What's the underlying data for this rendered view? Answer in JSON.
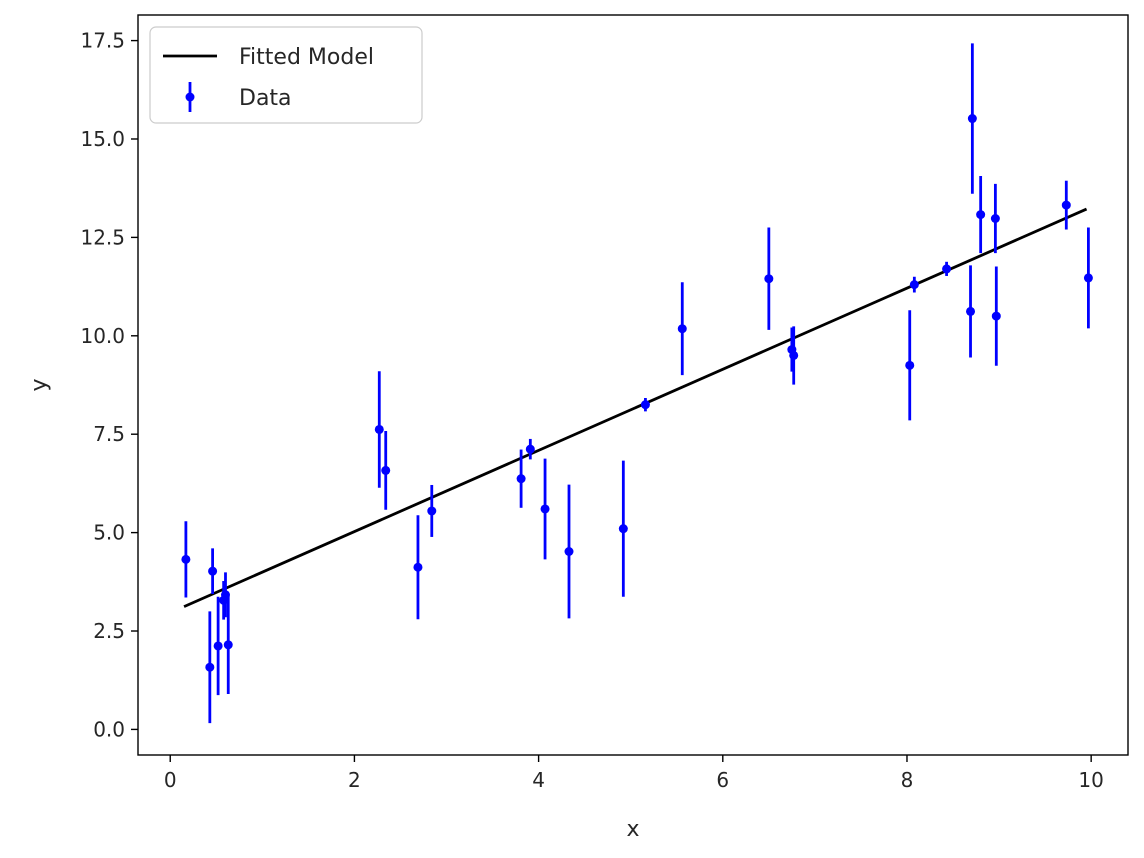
{
  "chart_data": {
    "type": "scatter",
    "title": "",
    "xlabel": "x",
    "ylabel": "y",
    "xlim": [
      -0.35,
      10.4
    ],
    "ylim": [
      -0.65,
      18.15
    ],
    "xticks": [
      0,
      2,
      4,
      6,
      8,
      10
    ],
    "xtick_labels": [
      "0",
      "2",
      "4",
      "6",
      "8",
      "10"
    ],
    "yticks": [
      0.0,
      2.5,
      5.0,
      7.5,
      10.0,
      12.5,
      15.0,
      17.5
    ],
    "ytick_labels": [
      "0.0",
      "2.5",
      "5.0",
      "7.5",
      "10.0",
      "12.5",
      "15.0",
      "17.5"
    ],
    "grid": false,
    "legend": {
      "location": "upper-left",
      "entries": [
        "Fitted Model",
        "Data"
      ]
    },
    "series": [
      {
        "name": "Fitted Model",
        "kind": "line",
        "color": "#000000",
        "x": [
          0.15,
          9.95
        ],
        "y": [
          3.12,
          13.22
        ]
      },
      {
        "name": "Data",
        "kind": "errorbar",
        "color": "#0000ff",
        "points": [
          {
            "x": 0.17,
            "y": 4.32,
            "yerr": 0.97
          },
          {
            "x": 0.43,
            "y": 1.58,
            "yerr": 1.42
          },
          {
            "x": 0.46,
            "y": 4.02,
            "yerr": 0.58
          },
          {
            "x": 0.52,
            "y": 2.12,
            "yerr": 1.25
          },
          {
            "x": 0.58,
            "y": 3.28,
            "yerr": 0.49
          },
          {
            "x": 0.6,
            "y": 3.42,
            "yerr": 0.57
          },
          {
            "x": 0.63,
            "y": 2.15,
            "yerr": 1.25
          },
          {
            "x": 2.27,
            "y": 7.62,
            "yerr": 1.48
          },
          {
            "x": 2.34,
            "y": 6.58,
            "yerr": 1.0
          },
          {
            "x": 2.69,
            "y": 4.12,
            "yerr": 1.32
          },
          {
            "x": 2.84,
            "y": 5.55,
            "yerr": 0.66
          },
          {
            "x": 3.81,
            "y": 6.37,
            "yerr": 0.74
          },
          {
            "x": 3.91,
            "y": 7.12,
            "yerr": 0.26
          },
          {
            "x": 4.07,
            "y": 5.6,
            "yerr": 1.28
          },
          {
            "x": 4.33,
            "y": 4.52,
            "yerr": 1.7
          },
          {
            "x": 4.92,
            "y": 5.1,
            "yerr": 1.73
          },
          {
            "x": 5.16,
            "y": 8.25,
            "yerr": 0.17
          },
          {
            "x": 5.56,
            "y": 10.18,
            "yerr": 1.18
          },
          {
            "x": 6.5,
            "y": 11.45,
            "yerr": 1.3
          },
          {
            "x": 6.75,
            "y": 9.65,
            "yerr": 0.56
          },
          {
            "x": 6.77,
            "y": 9.5,
            "yerr": 0.74
          },
          {
            "x": 8.03,
            "y": 9.25,
            "yerr": 1.4
          },
          {
            "x": 8.08,
            "y": 11.3,
            "yerr": 0.2
          },
          {
            "x": 8.43,
            "y": 11.7,
            "yerr": 0.18
          },
          {
            "x": 8.69,
            "y": 10.62,
            "yerr": 1.17
          },
          {
            "x": 8.71,
            "y": 15.52,
            "yerr": 1.91
          },
          {
            "x": 8.8,
            "y": 13.08,
            "yerr": 0.98
          },
          {
            "x": 8.96,
            "y": 12.98,
            "yerr": 0.88
          },
          {
            "x": 8.97,
            "y": 10.5,
            "yerr": 1.26
          },
          {
            "x": 9.73,
            "y": 13.32,
            "yerr": 0.62
          },
          {
            "x": 9.97,
            "y": 11.47,
            "yerr": 1.28
          }
        ]
      }
    ]
  }
}
